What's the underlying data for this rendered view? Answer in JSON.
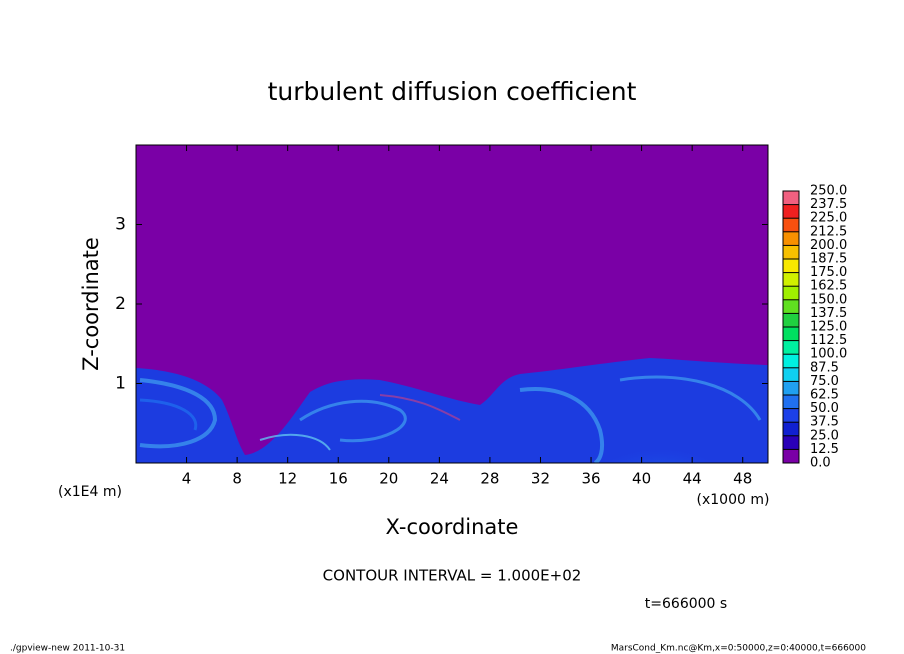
{
  "chart_data": {
    "type": "heatmap",
    "title": "turbulent diffusion coefficient",
    "xlabel": "X-coordinate",
    "ylabel": "Z-coordinate",
    "x_unit_label": "(x1000 m)",
    "y_unit_label": "(x1E4 m)",
    "xlim": [
      0,
      50
    ],
    "ylim": [
      0,
      4
    ],
    "xticks": [
      4,
      8,
      12,
      16,
      20,
      24,
      28,
      32,
      36,
      40,
      44,
      48
    ],
    "yticks": [
      1,
      2,
      3
    ],
    "background_color": "#7a00a6",
    "colorbar": {
      "levels": [
        {
          "value": 0,
          "label": "0.0"
        },
        {
          "value": 12.5,
          "label": "12.5"
        },
        {
          "value": 25,
          "label": "25.0"
        },
        {
          "value": 37.5,
          "label": "37.5"
        },
        {
          "value": 50,
          "label": "50.0"
        },
        {
          "value": 62.5,
          "label": "62.5"
        },
        {
          "value": 75,
          "label": "75.0"
        },
        {
          "value": 87.5,
          "label": "87.5"
        },
        {
          "value": 100,
          "label": "100.0"
        },
        {
          "value": 112.5,
          "label": "112.5"
        },
        {
          "value": 125,
          "label": "125.0"
        },
        {
          "value": 137.5,
          "label": "137.5"
        },
        {
          "value": 150,
          "label": "150.0"
        },
        {
          "value": 162.5,
          "label": "162.5"
        },
        {
          "value": 175,
          "label": "175.0"
        },
        {
          "value": 187.5,
          "label": "187.5"
        },
        {
          "value": 200,
          "label": "200.0"
        },
        {
          "value": 212.5,
          "label": "212.5"
        },
        {
          "value": 225,
          "label": "225.0"
        },
        {
          "value": 237.5,
          "label": "237.5"
        },
        {
          "value": 250,
          "label": "250.0"
        }
      ],
      "colors": [
        "#7a00a6",
        "#2a00b8",
        "#1020d0",
        "#1c40e8",
        "#2070f0",
        "#20a0f0",
        "#10d0f0",
        "#00f0e0",
        "#00f0a0",
        "#00e060",
        "#20d040",
        "#60e020",
        "#a0f000",
        "#d0f000",
        "#f8e800",
        "#f8c000",
        "#f89000",
        "#f85010",
        "#f02020",
        "#f06080"
      ]
    },
    "annotations": [
      "CONTOUR INTERVAL = 1.000E+02",
      "t=666000 s"
    ],
    "footer_left": "./gpview-new  2011-10-31",
    "footer_right": "MarsCond_Km.nc@Km,x=0:50000,z=0:40000,t=666000"
  }
}
